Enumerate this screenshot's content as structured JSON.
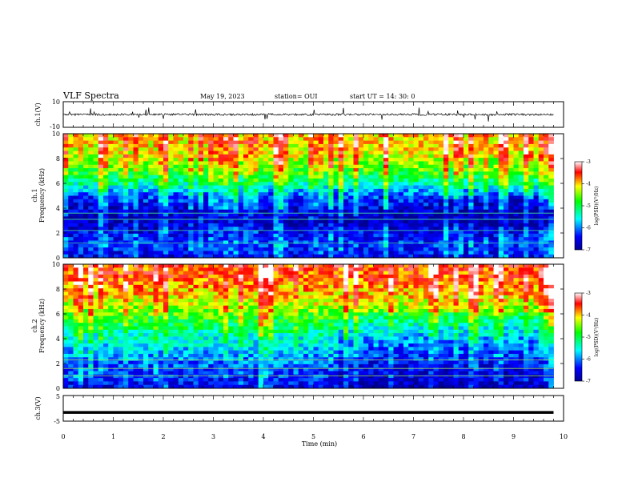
{
  "header": {
    "title": "VLF Spectra",
    "date": "May 19, 2023",
    "station": "station= OUI",
    "start": "start  UT =   14: 30: 0"
  },
  "chart_data": [
    {
      "type": "line",
      "ylabel": "ch.1(V)",
      "ylim": [
        -10,
        10
      ],
      "y_ticks": [
        "10",
        "-10"
      ],
      "xlim": [
        0,
        10
      ],
      "series": [
        {
          "values": "waveform trace near 0 V with occasional spikes to about ±5 V"
        }
      ]
    },
    {
      "type": "heatmap",
      "ylabel_line1": "ch.1",
      "ylabel_line2": "Frequency  (kHz)",
      "ylim": [
        0,
        10
      ],
      "y_ticks": [
        "0",
        "2",
        "4",
        "6",
        "8",
        "10"
      ],
      "xlim": [
        0,
        10
      ],
      "data_extent_min": 9.8,
      "colorbar": {
        "label": "log(PSD)(V²/Hz)",
        "ticks": [
          "-3",
          "-4",
          "-5",
          "-6",
          "-7"
        ],
        "range": [
          -7,
          -3
        ]
      },
      "profile_low_to_high_khz": [
        [
          0,
          -6.6
        ],
        [
          0.5,
          -6.4
        ],
        [
          1,
          -6.3
        ],
        [
          2,
          -6.5
        ],
        [
          3,
          -6.8
        ],
        [
          4,
          -6.6
        ],
        [
          5,
          -6.2
        ],
        [
          6,
          -5.3
        ],
        [
          7,
          -4.7
        ],
        [
          8,
          -4.3
        ],
        [
          9,
          -4.1
        ],
        [
          10,
          -4.0
        ]
      ],
      "features": "dark blue band 3–5.5 kHz; horizontal lines at ~1.2, 2.2, 3.1, 3.6 kHz; vertical impulsive streaks"
    },
    {
      "type": "heatmap",
      "ylabel_line1": "ch.2",
      "ylabel_line2": "Frequency  (kHz)",
      "ylim": [
        0,
        10
      ],
      "y_ticks": [
        "0",
        "2",
        "4",
        "6",
        "8",
        "10"
      ],
      "xlim": [
        0,
        10
      ],
      "data_extent_min": 9.8,
      "colorbar": {
        "label": "log(PSD)(V²/Hz)",
        "ticks": [
          "-3",
          "-4",
          "-5",
          "-6",
          "-7"
        ],
        "range": [
          -7,
          -3
        ]
      },
      "profile_low_to_high_khz": [
        [
          0,
          -6.5
        ],
        [
          1,
          -6.3
        ],
        [
          2,
          -6.1
        ],
        [
          3,
          -5.8
        ],
        [
          4,
          -5.5
        ],
        [
          5,
          -5.1
        ],
        [
          6,
          -4.6
        ],
        [
          7,
          -4.2
        ],
        [
          8,
          -3.9
        ],
        [
          9,
          -3.7
        ],
        [
          10,
          -3.6
        ]
      ],
      "features": "red above ~8 kHz, green 5–7 kHz, cyan/blue below 4 kHz; lower power after 5.5 min"
    },
    {
      "type": "line",
      "ylabel": "ch.3(V)",
      "ylim": [
        -5,
        5
      ],
      "y_ticks": [
        "5",
        "-5"
      ],
      "xlim": [
        0,
        10
      ],
      "series": [
        {
          "values": [
            [
              0,
              -1.6
            ],
            [
              9.8,
              -1.6
            ]
          ]
        }
      ]
    }
  ],
  "xaxis": {
    "label": "Time  (min)",
    "ticks": [
      "0",
      "1",
      "2",
      "3",
      "4",
      "5",
      "6",
      "7",
      "8",
      "9",
      "10"
    ],
    "range": [
      0,
      10
    ]
  }
}
